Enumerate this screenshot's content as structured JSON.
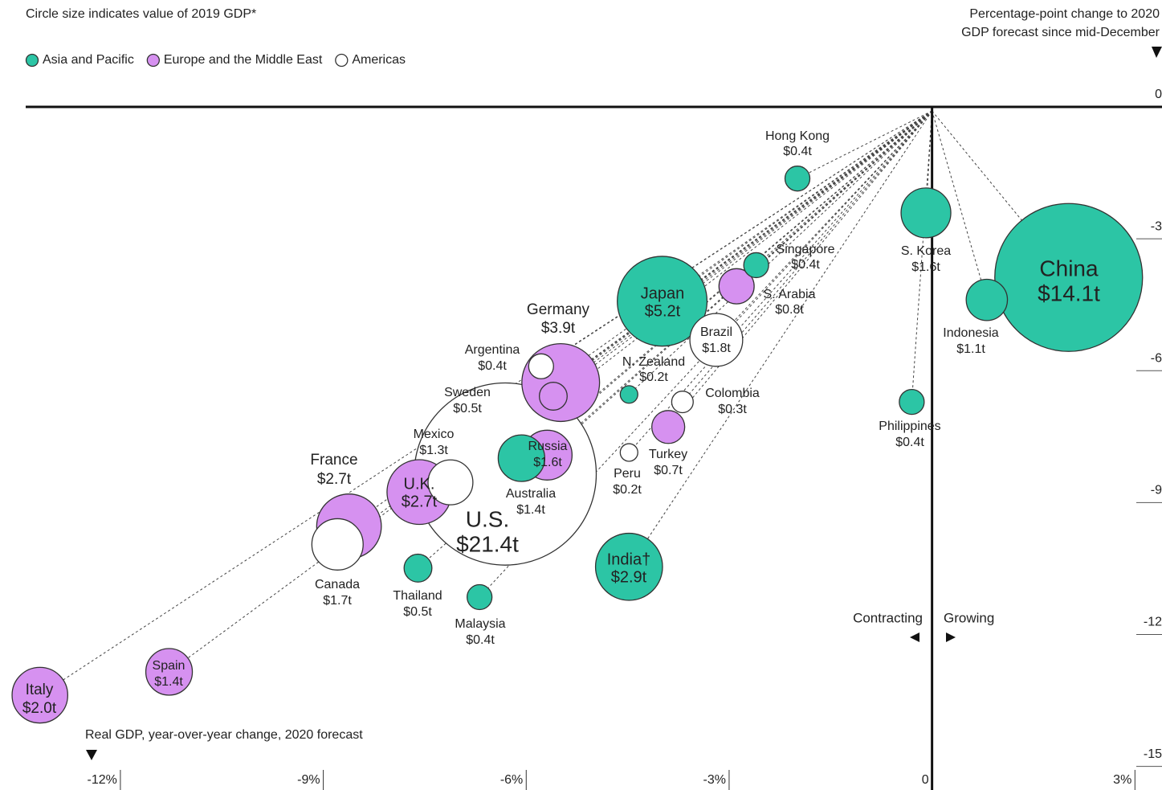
{
  "chart_data": {
    "type": "bubble",
    "title": "Circle size indicates value of 2019 GDP*",
    "x_label": "Real GDP, year-over-year change, 2020 forecast",
    "y_label": [
      "Percentage-point change to 2020",
      "GDP forecast since mid-December"
    ],
    "annotations": [
      "Contracting",
      "Growing"
    ],
    "xlim": [
      -13.4,
      3.4
    ],
    "ylim": [
      0,
      -15.5
    ],
    "xticks": [
      {
        "value": -12,
        "label": "-12%"
      },
      {
        "value": -9,
        "label": "-9%"
      },
      {
        "value": -6,
        "label": "-6%"
      },
      {
        "value": -3,
        "label": "-3%"
      },
      0,
      {
        "value": 3,
        "label": "3%"
      }
    ],
    "yticks": [
      0,
      -3,
      -6,
      -9,
      -12,
      -15
    ],
    "series": [
      {
        "name": "Asia and Pacific",
        "color": "#2cc5a5",
        "labels": [
          "China",
          "Japan",
          "India†",
          "S. Korea",
          "Australia",
          "Indonesia",
          "Thailand",
          "Hong Kong",
          "Singapore",
          "Philippines",
          "Malaysia",
          "N. Zealand"
        ],
        "x": [
          2.02,
          -3.99,
          -4.48,
          -0.09,
          -6.07,
          0.81,
          -7.6,
          -1.99,
          -2.6,
          -0.3,
          -6.69,
          -4.48
        ],
        "values": [
          -3.88,
          -4.42,
          -10.46,
          -2.41,
          -7.99,
          -4.39,
          -10.49,
          -1.63,
          -3.6,
          -6.71,
          -11.15,
          -6.54
        ],
        "sizes": [
          14.1,
          5.2,
          2.9,
          1.6,
          1.4,
          1.1,
          0.5,
          0.4,
          0.4,
          0.4,
          0.4,
          0.2
        ],
        "value_labels": [
          "$14.1t",
          "$5.2t",
          "$2.9t",
          "$1.6t",
          "$1.4t",
          "$1.1t",
          "$0.5t",
          "$0.4t",
          "$0.4t",
          "$0.4t",
          "$0.4t",
          "$0.2t"
        ]
      },
      {
        "name": "Europe and the Middle East",
        "color": "#d691f0",
        "labels": [
          "Germany",
          "U.K.",
          "France",
          "Italy",
          "Russia",
          "Spain",
          "S. Arabia",
          "Turkey",
          "Sweden"
        ],
        "x": [
          -5.49,
          -7.58,
          -8.62,
          -13.19,
          -5.69,
          -11.28,
          -2.89,
          -3.9,
          -5.6
        ],
        "values": [
          -6.27,
          -8.76,
          -9.54,
          -13.38,
          -7.92,
          -12.85,
          -4.08,
          -7.28,
          -6.58
        ],
        "sizes": [
          3.9,
          2.7,
          2.7,
          2.0,
          1.6,
          1.4,
          0.8,
          0.7,
          0.5
        ],
        "value_labels": [
          "$3.9t",
          "$2.7t",
          "$2.7t",
          "$2.0t",
          "$1.6t",
          "$1.4t",
          "$0.8t",
          "$0.7t",
          "$0.5t"
        ]
      },
      {
        "name": "Americas",
        "color": "#ffffff",
        "labels": [
          "U.S.",
          "Brazil",
          "Canada",
          "Mexico",
          "Argentina",
          "Colombia",
          "Peru"
        ],
        "x": [
          -6.31,
          -3.19,
          -8.79,
          -7.12,
          -5.78,
          -3.69,
          -4.48
        ],
        "values": [
          -8.35,
          -5.3,
          -9.95,
          -8.54,
          -5.9,
          -6.71,
          -7.86
        ],
        "sizes": [
          21.4,
          1.8,
          1.7,
          1.3,
          0.4,
          0.3,
          0.2
        ],
        "value_labels": [
          "$21.4t",
          "$1.8t",
          "$1.7t",
          "$1.3t",
          "$0.4t",
          "$0.3t",
          "$0.2t"
        ]
      }
    ]
  }
}
